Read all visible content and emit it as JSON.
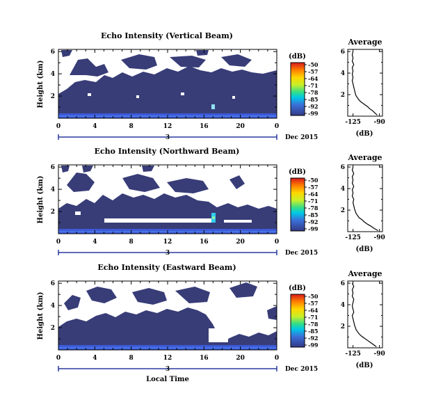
{
  "chart_data": [
    {
      "type": "heatmap",
      "title": "Echo Intensity (Vertical Beam)",
      "ylabel": "Height (km)",
      "x_ticks": [
        "0",
        "4",
        "8",
        "12",
        "16",
        "20",
        "0"
      ],
      "y_ticks": [
        "6",
        "4",
        "2"
      ],
      "date_day": "3",
      "date_label": "Dec 2015",
      "colorbar": {
        "unit": "(dB)",
        "ticks": [
          "-50",
          "-57",
          "-64",
          "-71",
          "-78",
          "-85",
          "-92",
          "-99"
        ]
      },
      "profile": {
        "title": "Average",
        "xlabel": "(dB)",
        "x_ticks": [
          "-125",
          "-90"
        ],
        "y_ticks": [
          "6",
          "4",
          "2"
        ],
        "height_km": [
          0.1,
          0.3,
          0.5,
          0.7,
          0.9,
          1.1,
          1.3,
          1.5,
          1.7,
          1.9,
          2.1,
          2.4,
          2.7,
          3.0,
          3.3,
          3.6,
          3.9,
          4.2,
          4.5,
          4.8,
          5.1,
          5.4,
          5.7,
          6.0
        ],
        "db": [
          -93,
          -96,
          -99,
          -103,
          -106,
          -110,
          -114,
          -117,
          -119,
          -121,
          -122,
          -123,
          -124,
          -125,
          -126,
          -125,
          -126,
          -125,
          -126,
          -124,
          -126,
          -125,
          -126,
          -125
        ]
      }
    },
    {
      "type": "heatmap",
      "title": "Echo Intensity (Northward Beam)",
      "ylabel": "Height (km)",
      "x_ticks": [
        "0",
        "4",
        "8",
        "12",
        "16",
        "20",
        "0"
      ],
      "y_ticks": [
        "6",
        "4",
        "2"
      ],
      "date_day": "3",
      "date_label": "Dec 2015",
      "colorbar": {
        "unit": "(dB)",
        "ticks": [
          "-50",
          "-57",
          "-64",
          "-71",
          "-78",
          "-85",
          "-92",
          "-99"
        ]
      },
      "profile": {
        "title": "Average",
        "xlabel": "(dB)",
        "x_ticks": [
          "-125",
          "-90"
        ],
        "y_ticks": [
          "6",
          "4",
          "2"
        ],
        "height_km": [
          0.1,
          0.3,
          0.5,
          0.7,
          0.9,
          1.1,
          1.3,
          1.5,
          1.7,
          1.9,
          2.1,
          2.4,
          2.7,
          3.0,
          3.3,
          3.6,
          3.9,
          4.2,
          4.5,
          4.8,
          5.1,
          5.4,
          5.7,
          6.0
        ],
        "db": [
          -92,
          -97,
          -101,
          -106,
          -110,
          -113,
          -117,
          -119,
          -121,
          -122,
          -123,
          -124,
          -125,
          -124,
          -126,
          -125,
          -126,
          -124,
          -126,
          -125,
          -126,
          -124,
          -126,
          -125
        ]
      }
    },
    {
      "type": "heatmap",
      "title": "Echo Intensity (Eastward Beam)",
      "ylabel": "Height (km)",
      "xlabel": "Local Time",
      "x_ticks": [
        "0",
        "4",
        "8",
        "12",
        "16",
        "20",
        "0"
      ],
      "y_ticks": [
        "6",
        "4",
        "2"
      ],
      "date_day": "3",
      "date_label": "Dec 2015",
      "colorbar": {
        "unit": "(dB)",
        "ticks": [
          "-50",
          "-57",
          "-64",
          "-71",
          "-78",
          "-85",
          "-92",
          "-99"
        ]
      },
      "profile": {
        "title": "Average",
        "xlabel": "(dB)",
        "x_ticks": [
          "-125",
          "-90"
        ],
        "y_ticks": [
          "6",
          "4",
          "2"
        ],
        "height_km": [
          0.1,
          0.3,
          0.5,
          0.7,
          0.9,
          1.1,
          1.3,
          1.5,
          1.7,
          1.9,
          2.1,
          2.4,
          2.7,
          3.0,
          3.3,
          3.6,
          3.9,
          4.2,
          4.5,
          4.8,
          5.1,
          5.4,
          5.7,
          6.0
        ],
        "db": [
          -94,
          -98,
          -102,
          -106,
          -110,
          -114,
          -117,
          -119,
          -121,
          -122,
          -123,
          -124,
          -125,
          -126,
          -124,
          -125,
          -126,
          -125,
          -124,
          -126,
          -125,
          -126,
          -124,
          -126
        ]
      }
    }
  ],
  "colors": {
    "colorbar_stops": [
      "#d7191c",
      "#ff7f00",
      "#ffd700",
      "#c8f02a",
      "#33dd88",
      "#00c8e6",
      "#3a6fd8",
      "#343a86"
    ],
    "background_echo": "#383d78",
    "near_surface": "#3c5ad8",
    "date_axis": "#2a3aa0",
    "missing": "#ffffff"
  }
}
